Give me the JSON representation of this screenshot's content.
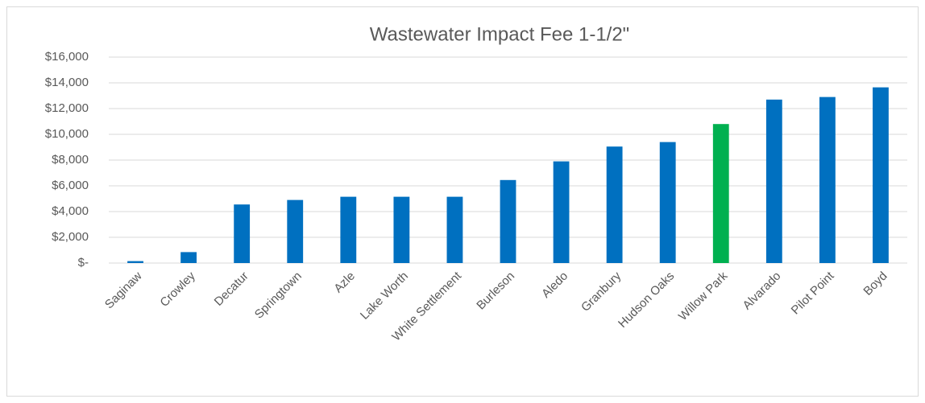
{
  "chart_data": {
    "type": "bar",
    "title": "Wastewater Impact Fee 1-1/2\"",
    "categories": [
      "Saginaw",
      "Crowley",
      "Decatur",
      "Springtown",
      "Azle",
      "Lake Worth",
      "White Settlement",
      "Burleson",
      "Aledo",
      "Granbury",
      "Hudson Oaks",
      "Willow Park",
      "Alvarado",
      "Pilot Point",
      "Boyd"
    ],
    "values": [
      150,
      850,
      4550,
      4900,
      5150,
      5150,
      5150,
      6450,
      7900,
      9050,
      9400,
      10800,
      12700,
      12900,
      13650
    ],
    "colors": [
      "#0070c0",
      "#0070c0",
      "#0070c0",
      "#0070c0",
      "#0070c0",
      "#0070c0",
      "#0070c0",
      "#0070c0",
      "#0070c0",
      "#0070c0",
      "#0070c0",
      "#00b050",
      "#0070c0",
      "#0070c0",
      "#0070c0"
    ],
    "ylim": [
      0,
      16000
    ],
    "yticks": [
      {
        "value": 0,
        "label": "$-"
      },
      {
        "value": 2000,
        "label": "$2,000"
      },
      {
        "value": 4000,
        "label": "$4,000"
      },
      {
        "value": 6000,
        "label": "$6,000"
      },
      {
        "value": 8000,
        "label": "$8,000"
      },
      {
        "value": 10000,
        "label": "$10,000"
      },
      {
        "value": 12000,
        "label": "$12,000"
      },
      {
        "value": 14000,
        "label": "$14,000"
      },
      {
        "value": 16000,
        "label": "$16,000"
      }
    ],
    "grid": true
  }
}
